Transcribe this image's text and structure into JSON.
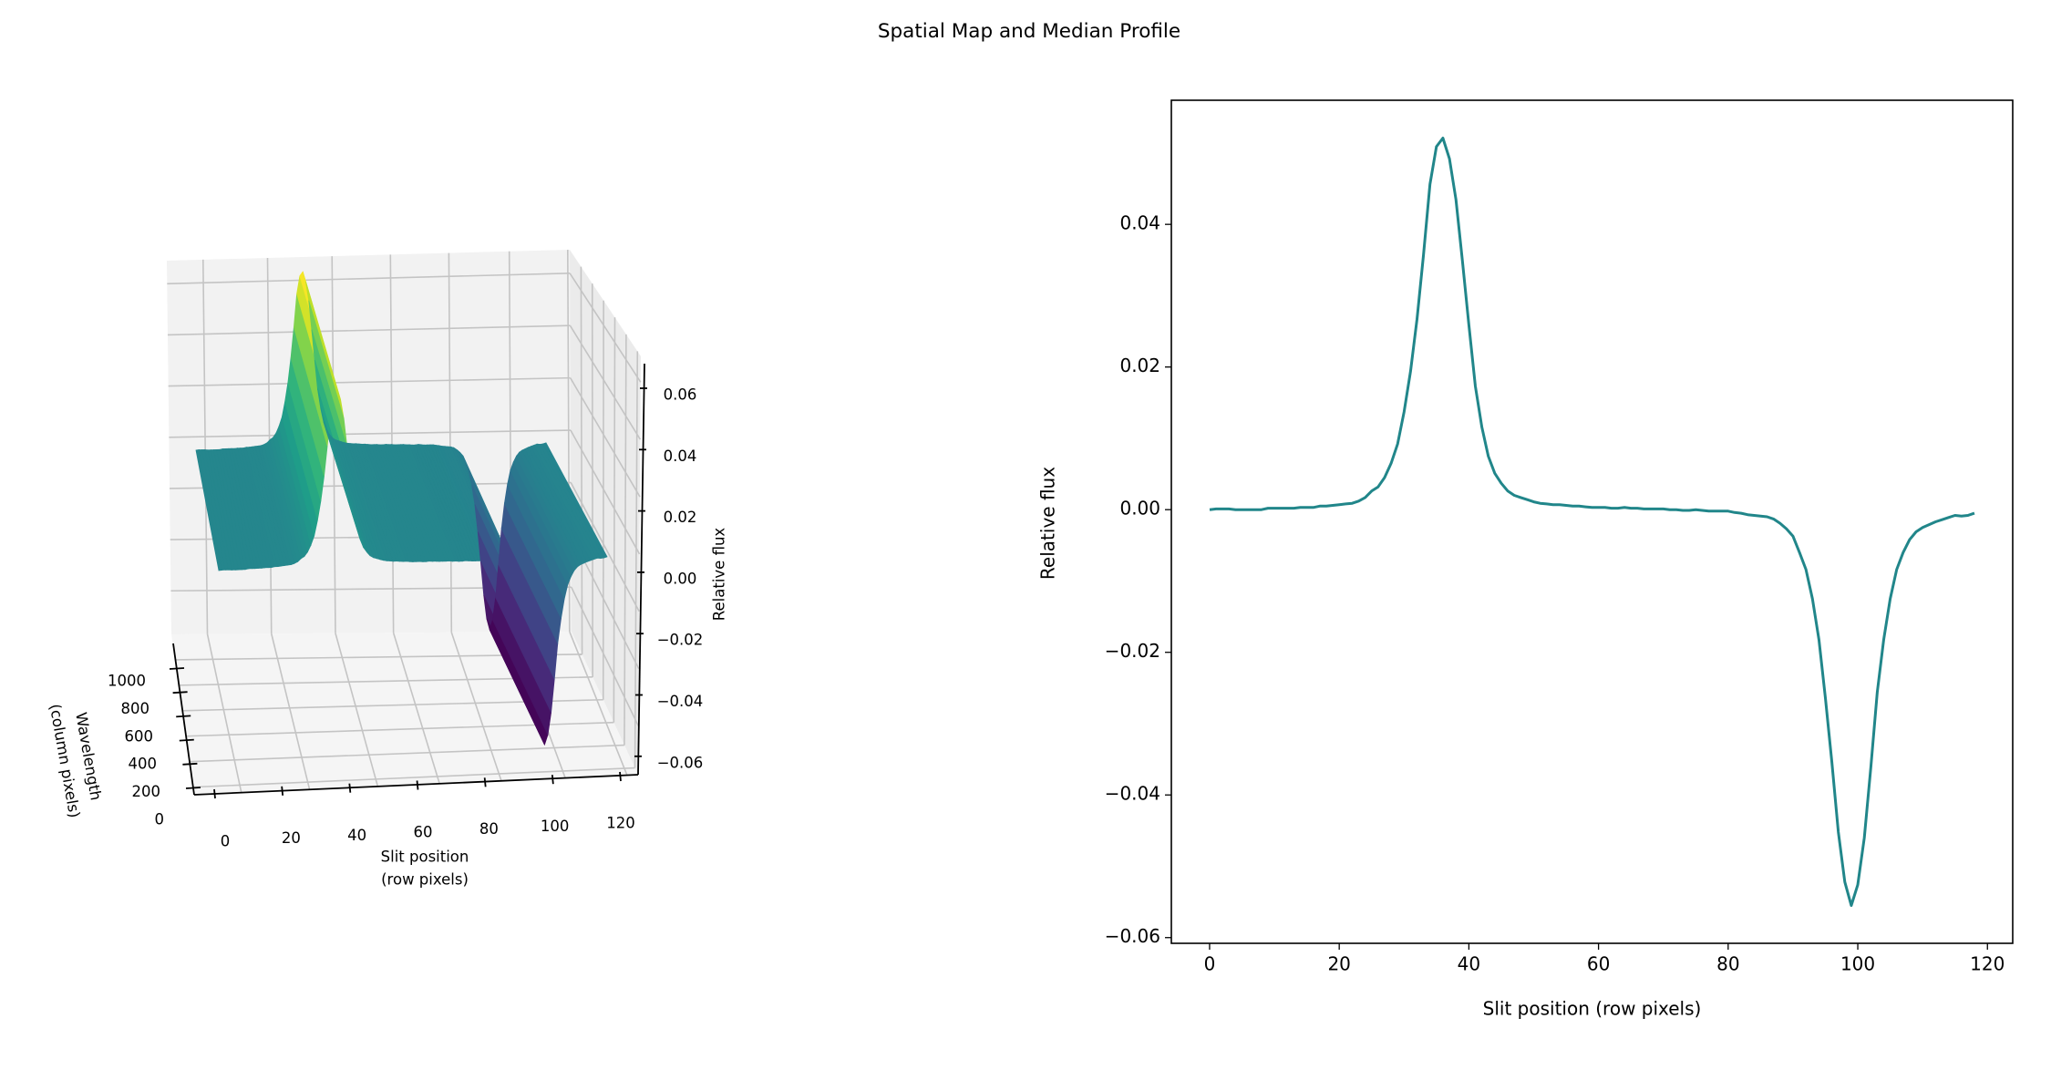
{
  "figure": {
    "title": "Spatial Map and Median Profile"
  },
  "chart_data": [
    {
      "type": "surface",
      "xlabel": "Slit position\n(row pixels)",
      "xlabel_lines": [
        "Slit position",
        "(row pixels)"
      ],
      "ylabel_lines": [
        "Wavelength",
        "(column pixels)"
      ],
      "zlabel": "Relative flux",
      "xticks": [
        "0",
        "20",
        "40",
        "60",
        "80",
        "100",
        "120"
      ],
      "yticks": [
        "0",
        "200",
        "400",
        "600",
        "800",
        "1000"
      ],
      "zticks": [
        "0.06",
        "0.04",
        "0.02",
        "0.00",
        "−0.02",
        "−0.04",
        "−0.06"
      ],
      "xlim": [
        -8,
        125
      ],
      "ylim": [
        0,
        1100
      ],
      "zlim": [
        -0.065,
        0.065
      ],
      "colormap": "viridis",
      "grid": true
    },
    {
      "type": "line",
      "xlabel": "Slit position (row pixels)",
      "ylabel": "Relative flux",
      "xlim": [
        -5.9,
        123.9
      ],
      "ylim": [
        -0.0608,
        0.0574
      ],
      "xticks": [
        "0",
        "20",
        "40",
        "60",
        "80",
        "100",
        "120"
      ],
      "yticks": [
        "0.04",
        "0.02",
        "0.00",
        "−0.02",
        "−0.04",
        "−0.06"
      ],
      "grid": false,
      "color": "#21868a",
      "x": [
        0,
        1,
        2,
        3,
        4,
        5,
        6,
        7,
        8,
        9,
        10,
        11,
        12,
        13,
        14,
        15,
        16,
        17,
        18,
        19,
        20,
        21,
        22,
        23,
        24,
        25,
        26,
        27,
        28,
        29,
        30,
        31,
        32,
        33,
        34,
        35,
        36,
        37,
        38,
        39,
        40,
        41,
        42,
        43,
        44,
        45,
        46,
        47,
        48,
        49,
        50,
        51,
        52,
        53,
        54,
        55,
        56,
        57,
        58,
        59,
        60,
        61,
        62,
        63,
        64,
        65,
        66,
        67,
        68,
        69,
        70,
        71,
        72,
        73,
        74,
        75,
        76,
        77,
        78,
        79,
        80,
        81,
        82,
        83,
        84,
        85,
        86,
        87,
        88,
        89,
        90,
        91,
        92,
        93,
        94,
        95,
        96,
        97,
        98,
        99,
        100,
        101,
        102,
        103,
        104,
        105,
        106,
        107,
        108,
        109,
        110,
        111,
        112,
        113,
        114,
        115,
        116,
        117,
        118
      ],
      "y": [
        0.0,
        0.0001,
        0.0001,
        0.0001,
        0.0,
        0.0,
        0.0,
        0.0,
        0.0,
        0.0002,
        0.0002,
        0.0002,
        0.0002,
        0.0002,
        0.0003,
        0.0003,
        0.0003,
        0.0005,
        0.0005,
        0.0006,
        0.0007,
        0.0008,
        0.0009,
        0.0012,
        0.0017,
        0.0026,
        0.0032,
        0.0045,
        0.0065,
        0.0092,
        0.0137,
        0.0194,
        0.0267,
        0.0357,
        0.0456,
        0.0509,
        0.0521,
        0.0492,
        0.0435,
        0.0349,
        0.0259,
        0.0173,
        0.0116,
        0.0075,
        0.0051,
        0.0037,
        0.0026,
        0.002,
        0.0017,
        0.0014,
        0.0011,
        0.0009,
        0.0008,
        0.0007,
        0.0007,
        0.0006,
        0.0005,
        0.0005,
        0.0004,
        0.0003,
        0.0003,
        0.0003,
        0.0002,
        0.0002,
        0.0003,
        0.0002,
        0.0002,
        0.0001,
        0.0001,
        0.0001,
        0.0001,
        0.0,
        0.0,
        -0.0001,
        -0.0001,
        0.0,
        -0.0001,
        -0.0002,
        -0.0002,
        -0.0002,
        -0.0002,
        -0.0004,
        -0.0005,
        -0.0007,
        -0.0008,
        -0.0009,
        -0.001,
        -0.0013,
        -0.0019,
        -0.0027,
        -0.0037,
        -0.006,
        -0.0084,
        -0.0125,
        -0.0182,
        -0.0264,
        -0.0354,
        -0.0452,
        -0.0522,
        -0.0555,
        -0.0526,
        -0.046,
        -0.0362,
        -0.0256,
        -0.0182,
        -0.0125,
        -0.0084,
        -0.006,
        -0.0042,
        -0.0031,
        -0.0025,
        -0.0021,
        -0.0017,
        -0.0014,
        -0.0011,
        -0.0008,
        -0.0009,
        -0.0008,
        -0.0005
      ]
    }
  ]
}
